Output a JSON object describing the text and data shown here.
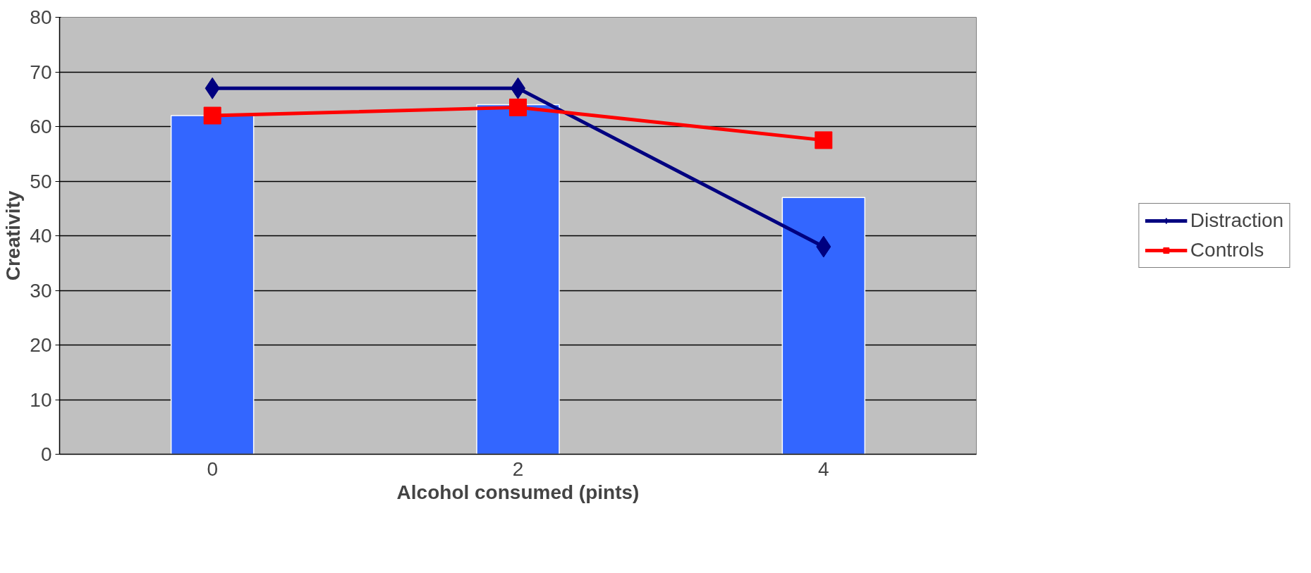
{
  "chart_data": {
    "type": "bar",
    "xlabel": "Alcohol consumed (pints)",
    "ylabel": "Creativity",
    "categories": [
      "0",
      "2",
      "4"
    ],
    "ylim": [
      0,
      80
    ],
    "yticks": [
      0,
      10,
      20,
      30,
      40,
      50,
      60,
      70,
      80
    ],
    "grid": "y",
    "legend": "right",
    "series": [
      {
        "color": "#3366ff",
        "values": [
          62,
          64,
          47
        ]
      },
      {
        "type": "line",
        "name": "Distraction",
        "color": "#000080",
        "marker": "diamond",
        "values": [
          67,
          67,
          38
        ]
      },
      {
        "type": "line",
        "name": "Controls",
        "color": "#ff0000",
        "marker": "square",
        "values": [
          62,
          63.5,
          57.5
        ]
      }
    ]
  }
}
